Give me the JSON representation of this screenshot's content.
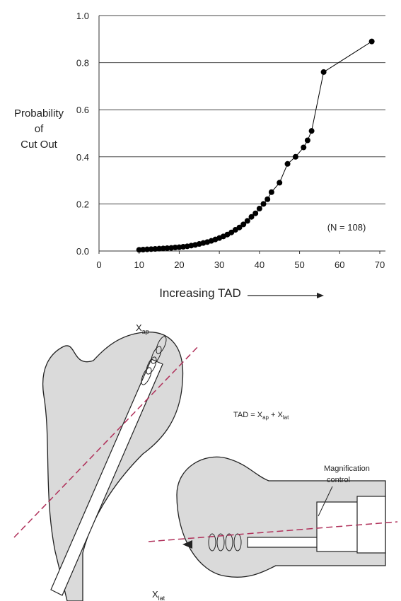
{
  "chart_data": {
    "type": "line",
    "ylabel_lines": [
      "Probability",
      "of",
      "Cut Out"
    ],
    "xlabel": "Increasing TAD",
    "annotation": "(N = 108)",
    "x": [
      10,
      11,
      12,
      13,
      14,
      15,
      16,
      17,
      18,
      19,
      20,
      21,
      22,
      23,
      24,
      25,
      26,
      27,
      28,
      29,
      30,
      31,
      32,
      33,
      34,
      35,
      36,
      37,
      38,
      39,
      40,
      41,
      42,
      43,
      45,
      47,
      49,
      51,
      52,
      53,
      56,
      68
    ],
    "values": [
      0.005,
      0.006,
      0.007,
      0.008,
      0.009,
      0.01,
      0.011,
      0.012,
      0.013,
      0.015,
      0.016,
      0.018,
      0.02,
      0.023,
      0.026,
      0.03,
      0.034,
      0.038,
      0.043,
      0.049,
      0.055,
      0.062,
      0.07,
      0.079,
      0.09,
      0.1,
      0.113,
      0.128,
      0.145,
      0.16,
      0.18,
      0.2,
      0.22,
      0.25,
      0.29,
      0.37,
      0.4,
      0.44,
      0.47,
      0.51,
      0.76,
      0.89
    ],
    "color": "#000000",
    "xlim": [
      0,
      70
    ],
    "ylim": [
      0,
      1
    ],
    "xticks": [
      0,
      10,
      20,
      30,
      40,
      50,
      60,
      70
    ],
    "yticks": [
      {
        "value": 0,
        "label": "0.0"
      },
      0.2,
      0.4,
      0.6,
      0.8,
      {
        "value": 1,
        "label": "1.0"
      }
    ],
    "grid": true
  },
  "diagram": {
    "ap_label": {
      "main": "X",
      "sub": "ap"
    },
    "formula": [
      "TAD = X",
      "ap",
      " + X",
      "lat"
    ],
    "magnification": [
      "Magnification",
      "control"
    ],
    "lat_label": {
      "main": "X",
      "sub": "lat"
    }
  }
}
